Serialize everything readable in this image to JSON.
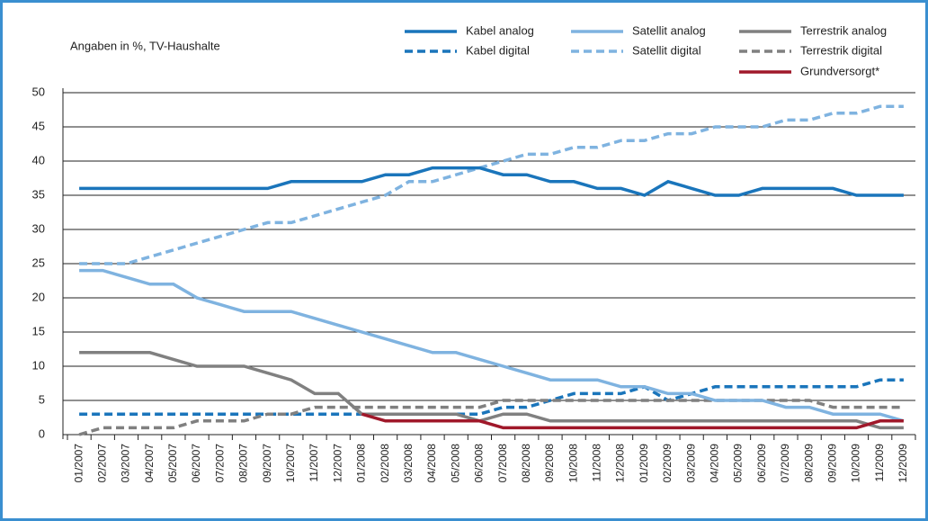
{
  "chart_data": {
    "type": "line",
    "subtitle": "Angaben in %, TV-Haushalte",
    "categories": [
      "01/2007",
      "02/2007",
      "03/2007",
      "04/2007",
      "05/2007",
      "06/2007",
      "07/2007",
      "08/2007",
      "09/2007",
      "10/2007",
      "11/2007",
      "12/2007",
      "01/2008",
      "02/2008",
      "03/2008",
      "04/2008",
      "05/2008",
      "06/2008",
      "07/2008",
      "08/2008",
      "09/2008",
      "10/2008",
      "11/2008",
      "12/2008",
      "01/2009",
      "02/2009",
      "03/2009",
      "04/2009",
      "05/2009",
      "06/2009",
      "07/2009",
      "08/2009",
      "09/2009",
      "10/2009",
      "11/2009",
      "12/2009"
    ],
    "series": [
      {
        "name": "Kabel analog",
        "color": "#1a75bb",
        "dashed": false,
        "values": [
          36,
          36,
          36,
          36,
          36,
          36,
          36,
          36,
          36,
          37,
          37,
          37,
          37,
          38,
          38,
          39,
          39,
          39,
          38,
          38,
          37,
          37,
          36,
          36,
          35,
          37,
          36,
          35,
          35,
          36,
          36,
          36,
          36,
          35,
          35,
          35
        ]
      },
      {
        "name": "Satellit analog",
        "color": "#7fb3e0",
        "dashed": false,
        "values": [
          24,
          24,
          23,
          22,
          22,
          20,
          19,
          18,
          18,
          18,
          17,
          16,
          15,
          14,
          13,
          12,
          12,
          11,
          10,
          9,
          8,
          8,
          8,
          7,
          7,
          6,
          6,
          5,
          5,
          5,
          4,
          4,
          3,
          3,
          3,
          2
        ]
      },
      {
        "name": "Terrestrik analog",
        "color": "#808080",
        "dashed": false,
        "values": [
          12,
          12,
          12,
          12,
          11,
          10,
          10,
          10,
          9,
          8,
          6,
          6,
          3,
          3,
          3,
          3,
          3,
          2,
          3,
          3,
          2,
          2,
          2,
          2,
          2,
          2,
          2,
          2,
          2,
          2,
          2,
          2,
          2,
          2,
          1,
          1
        ]
      },
      {
        "name": "Kabel digital",
        "color": "#1a75bb",
        "dashed": true,
        "values": [
          3,
          3,
          3,
          3,
          3,
          3,
          3,
          3,
          3,
          3,
          3,
          3,
          3,
          3,
          3,
          3,
          3,
          3,
          4,
          4,
          5,
          6,
          6,
          6,
          7,
          5,
          6,
          7,
          7,
          7,
          7,
          7,
          7,
          7,
          8,
          8
        ]
      },
      {
        "name": "Satellit digital",
        "color": "#7fb3e0",
        "dashed": true,
        "values": [
          25,
          25,
          25,
          26,
          27,
          28,
          29,
          30,
          31,
          31,
          32,
          33,
          34,
          35,
          37,
          37,
          38,
          39,
          40,
          41,
          41,
          42,
          42,
          43,
          43,
          44,
          44,
          45,
          45,
          45,
          46,
          46,
          47,
          47,
          48,
          48
        ]
      },
      {
        "name": "Terrestrik digital",
        "color": "#808080",
        "dashed": true,
        "values": [
          0,
          1,
          1,
          1,
          1,
          2,
          2,
          2,
          3,
          3,
          4,
          4,
          4,
          4,
          4,
          4,
          4,
          4,
          5,
          5,
          5,
          5,
          5,
          5,
          5,
          5,
          5,
          5,
          5,
          5,
          5,
          5,
          4,
          4,
          4,
          4
        ]
      },
      {
        "name": "Grundversorgt*",
        "color": "#a0182a",
        "dashed": false,
        "values": [
          null,
          null,
          null,
          null,
          null,
          null,
          null,
          null,
          null,
          null,
          null,
          null,
          3,
          2,
          2,
          2,
          2,
          2,
          1,
          1,
          1,
          1,
          1,
          1,
          1,
          1,
          1,
          1,
          1,
          1,
          1,
          1,
          1,
          1,
          2,
          2
        ]
      }
    ],
    "ylim": [
      0,
      50
    ],
    "yticks": [
      0,
      5,
      10,
      15,
      20,
      25,
      30,
      35,
      40,
      45,
      50
    ],
    "grid": true
  }
}
